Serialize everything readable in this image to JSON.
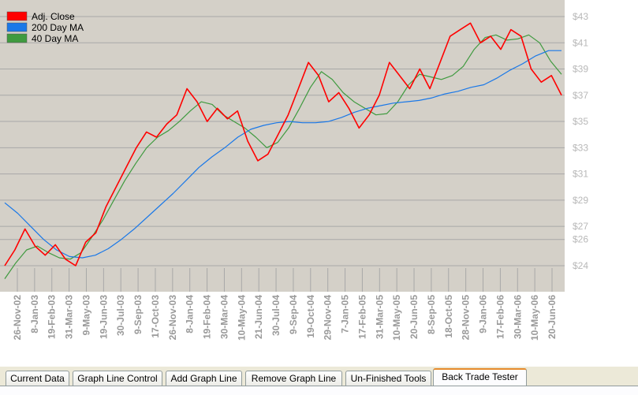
{
  "chart_data": {
    "type": "line",
    "ylim": [
      23,
      43
    ],
    "y_ticks": [
      24,
      26,
      27,
      29,
      31,
      33,
      35,
      37,
      39,
      41,
      43
    ],
    "y_tick_labels": [
      "$24",
      "$26",
      "$27",
      "$29",
      "$31",
      "$33",
      "$35",
      "$37",
      "$39",
      "$41",
      "$43"
    ],
    "x_tick_labels": [
      "26-Nov-02",
      "8-Jan-03",
      "19-Feb-03",
      "31-Mar-03",
      "9-May-03",
      "19-Jun-03",
      "30-Jul-03",
      "9-Sep-03",
      "17-Oct-03",
      "26-Nov-03",
      "8-Jan-04",
      "19-Feb-04",
      "30-Mar-04",
      "10-May-04",
      "21-Jun-04",
      "30-Jul-04",
      "9-Sep-04",
      "19-Oct-04",
      "29-Nov-04",
      "7-Jan-05",
      "17-Feb-05",
      "31-Mar-05",
      "10-May-05",
      "20-Jun-05",
      "8-Sep-05",
      "18-Oct-05",
      "28-Nov-05",
      "9-Jan-06",
      "17-Feb-06",
      "30-Mar-06",
      "10-May-06",
      "20-Jun-06"
    ],
    "grid": true,
    "legend_position": "top-left",
    "series": [
      {
        "name": "Adj. Close",
        "color": "#ff0000",
        "values": [
          24.0,
          25.2,
          26.8,
          25.5,
          24.8,
          25.6,
          24.5,
          24.0,
          25.8,
          26.5,
          28.5,
          30.0,
          31.5,
          33.0,
          34.2,
          33.8,
          34.8,
          35.5,
          37.5,
          36.5,
          35.0,
          36.0,
          35.2,
          35.8,
          33.5,
          32.0,
          32.5,
          34.0,
          35.5,
          37.5,
          39.5,
          38.5,
          36.5,
          37.2,
          36.0,
          34.5,
          35.5,
          37.0,
          39.5,
          38.5,
          37.5,
          39.0,
          37.5,
          39.5,
          41.5,
          42.0,
          42.5,
          41.0,
          41.5,
          40.5,
          42.0,
          41.5,
          39.0,
          38.0,
          38.5,
          37.0
        ]
      },
      {
        "name": "200 Day MA",
        "color": "#1a78e8",
        "values": [
          28.8,
          28.0,
          27.0,
          26.0,
          25.2,
          24.7,
          24.6,
          24.8,
          25.3,
          26.0,
          26.8,
          27.7,
          28.6,
          29.5,
          30.5,
          31.5,
          32.3,
          33.0,
          33.8,
          34.4,
          34.7,
          34.9,
          35.0,
          34.9,
          34.9,
          35.0,
          35.3,
          35.7,
          36.0,
          36.2,
          36.4,
          36.5,
          36.6,
          36.8,
          37.1,
          37.3,
          37.6,
          37.8,
          38.3,
          38.9,
          39.4,
          40.0,
          40.4,
          40.4
        ]
      },
      {
        "name": "40 Day MA",
        "color": "#3f9a3f",
        "values": [
          23.0,
          24.2,
          25.2,
          25.5,
          25.0,
          24.6,
          24.5,
          25.0,
          26.2,
          27.5,
          29.0,
          30.5,
          31.8,
          33.0,
          33.8,
          34.3,
          35.0,
          35.8,
          36.5,
          36.3,
          35.5,
          35.0,
          34.5,
          33.8,
          33.0,
          33.4,
          34.5,
          36.0,
          37.6,
          38.8,
          38.2,
          37.2,
          36.5,
          36.0,
          35.5,
          35.6,
          36.5,
          37.8,
          38.6,
          38.4,
          38.2,
          38.5,
          39.2,
          40.5,
          41.4,
          41.6,
          41.2,
          41.3,
          41.6,
          41.0,
          39.6,
          38.6
        ]
      }
    ]
  },
  "tabs": [
    {
      "label": "Current Data"
    },
    {
      "label": "Graph Line Control"
    },
    {
      "label": "Add Graph Line"
    },
    {
      "label": "Remove Graph Line"
    },
    {
      "label": "Un-Finished Tools"
    },
    {
      "label": "Back Trade Tester",
      "active": true
    }
  ]
}
